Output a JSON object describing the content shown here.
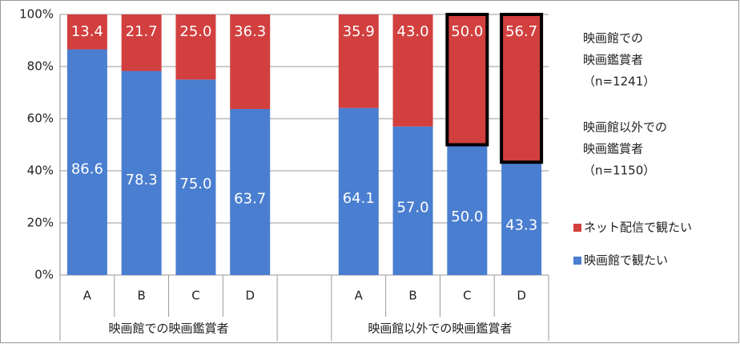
{
  "chart_data": {
    "type": "stacked-bar",
    "categories": [
      "A",
      "B",
      "C",
      "D",
      null,
      "A",
      "B",
      "C",
      "D"
    ],
    "groups": [
      {
        "label": "映画館での映画鑑賞者",
        "start": 0,
        "end": 3
      },
      {
        "label": "映画館以外での映画鑑賞者",
        "start": 5,
        "end": 8
      }
    ],
    "series": [
      {
        "name": "映画館で観たい",
        "color": "#4a7ed0",
        "values": [
          86.6,
          78.3,
          75.0,
          63.7,
          null,
          64.1,
          57.0,
          50.0,
          43.3
        ],
        "value_labels": [
          "86.6",
          "78.3",
          "75.0",
          "63.7",
          null,
          "64.1",
          "57.0",
          "50.0",
          "43.3"
        ]
      },
      {
        "name": "ネット配信で観たい",
        "color": "#d23f3f",
        "values": [
          13.4,
          21.7,
          25.0,
          36.3,
          null,
          35.9,
          43.0,
          50.0,
          56.7
        ],
        "value_labels": [
          "13.4",
          "21.7",
          "25.0",
          "36.3",
          null,
          "35.9",
          "43.0",
          "50.0",
          "56.7"
        ]
      }
    ],
    "highlighted": [
      7,
      8
    ],
    "ylim": [
      0,
      100
    ],
    "yticks": [
      {
        "value": 0,
        "label": "0%"
      },
      {
        "value": 20,
        "label": "20%"
      },
      {
        "value": 40,
        "label": "40%"
      },
      {
        "value": 60,
        "label": "60%"
      },
      {
        "value": 80,
        "label": "80%"
      },
      {
        "value": 100,
        "label": "100%"
      }
    ],
    "grid": true,
    "annotations": [
      [
        "映画館での",
        "映画鑑賞者",
        "（n=1241）"
      ],
      [
        "映画館以外での",
        "映画鑑賞者",
        "（n=1150）"
      ]
    ]
  }
}
